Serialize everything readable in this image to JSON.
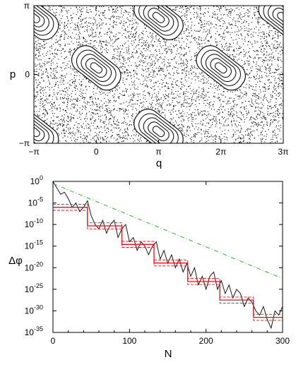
{
  "chart_data": [
    {
      "type": "scatter",
      "title": "",
      "xlabel": "q",
      "ylabel": "p",
      "xlim": [
        -3.14159,
        9.42478
      ],
      "ylim": [
        -3.14159,
        3.14159
      ],
      "grid": false,
      "x_tick_labels": [
        "−π",
        "0",
        "π",
        "2π",
        "3π"
      ],
      "x_tick_values": [
        -3.14159,
        0,
        3.14159,
        6.28319,
        9.42478
      ],
      "y_tick_labels": [
        "−π",
        "0",
        "π"
      ],
      "y_tick_values": [
        -3.14159,
        0,
        3.14159
      ],
      "regions": [
        {
          "kind": "chaotic-sea",
          "description_values": "area-filling scattered orbit points"
        },
        {
          "kind": "island",
          "center": [
            0,
            0.3
          ],
          "tilt": "descending"
        },
        {
          "kind": "island",
          "center": [
            6.28,
            0.3
          ],
          "tilt": "descending"
        },
        {
          "kind": "island",
          "center": [
            3.14,
            2.6
          ],
          "tilt": "descending"
        },
        {
          "kind": "island",
          "center": [
            9.42,
            2.6
          ],
          "tilt": "descending"
        },
        {
          "kind": "island",
          "center": [
            3.14,
            -2.6
          ],
          "tilt": "descending"
        },
        {
          "kind": "island",
          "center": [
            -3.14,
            -2.6
          ],
          "tilt": "descending"
        },
        {
          "kind": "island",
          "center": [
            -3.14,
            2.6
          ],
          "tilt": "descending"
        }
      ]
    },
    {
      "type": "line",
      "title": "",
      "xlabel": "N",
      "ylabel": "Δφ",
      "xlim": [
        0,
        300
      ],
      "ylim_log10": [
        -35,
        0
      ],
      "yscale": "log",
      "grid": false,
      "x_tick_values": [
        0,
        100,
        200,
        300
      ],
      "x_tick_labels": [
        "0",
        "100",
        "200",
        "300"
      ],
      "y_tick_exponents": [
        0,
        -5,
        -10,
        -15,
        -20,
        -25,
        -30,
        -35
      ],
      "y_tick_base": "10",
      "series": [
        {
          "style": "black-line",
          "x": [
            0,
            5,
            10,
            15,
            20,
            25,
            30,
            35,
            40,
            45,
            50,
            55,
            60,
            65,
            70,
            75,
            80,
            85,
            90,
            95,
            100,
            105,
            110,
            115,
            120,
            125,
            130,
            135,
            140,
            145,
            150,
            155,
            160,
            165,
            170,
            175,
            180,
            185,
            190,
            195,
            200,
            205,
            210,
            215,
            220,
            225,
            230,
            235,
            240,
            245,
            250,
            255,
            260,
            265,
            270,
            275,
            280,
            285,
            290,
            295,
            300
          ],
          "log10_y": [
            0,
            -1.5,
            -3,
            -2.5,
            -4,
            -6,
            -5,
            -7,
            -6,
            -4.5,
            -8,
            -10,
            -11,
            -9,
            -12,
            -10,
            -9,
            -13,
            -11,
            -10,
            -14,
            -13,
            -16,
            -14,
            -15,
            -17,
            -15,
            -14,
            -18,
            -16,
            -19,
            -17,
            -20,
            -18,
            -21,
            -19,
            -22,
            -20,
            -24,
            -22,
            -25,
            -22,
            -21,
            -25,
            -23,
            -26,
            -24,
            -27,
            -25,
            -26,
            -29,
            -27,
            -28,
            -30,
            -31,
            -29,
            -32,
            -34,
            -30,
            -31,
            -29
          ]
        },
        {
          "style": "red-staircase",
          "x": [
            0,
            45,
            45,
            90,
            90,
            132,
            132,
            176,
            176,
            218,
            218,
            262,
            262,
            300
          ],
          "log10_y": [
            -6,
            -6,
            -10.3,
            -10.3,
            -14.6,
            -14.6,
            -18.9,
            -18.9,
            -23.2,
            -23.2,
            -27.5,
            -27.5,
            -31.5,
            -31.5
          ]
        },
        {
          "style": "red-staircase-upper",
          "x": [
            0,
            45,
            45,
            90,
            90,
            132,
            132,
            176,
            176,
            218,
            218,
            262,
            262,
            300
          ],
          "log10_y": [
            -5.3,
            -5.3,
            -9.6,
            -9.6,
            -13.9,
            -13.9,
            -18.2,
            -18.2,
            -22.5,
            -22.5,
            -26.8,
            -26.8,
            -30.8,
            -30.8
          ]
        },
        {
          "style": "red-staircase-lower",
          "x": [
            0,
            45,
            45,
            90,
            90,
            132,
            132,
            176,
            176,
            218,
            218,
            262,
            262,
            300
          ],
          "log10_y": [
            -6.7,
            -6.7,
            -11.0,
            -11.0,
            -15.3,
            -15.3,
            -19.6,
            -19.6,
            -23.9,
            -23.9,
            -28.2,
            -28.2,
            -32.2,
            -32.2
          ]
        },
        {
          "style": "green-dash-dot",
          "x": [
            0,
            300
          ],
          "log10_y": [
            -0.5,
            -22.5
          ]
        }
      ]
    }
  ],
  "colors": {
    "red": "#e8101a",
    "green": "#2fb32f",
    "ink": "#000000"
  }
}
